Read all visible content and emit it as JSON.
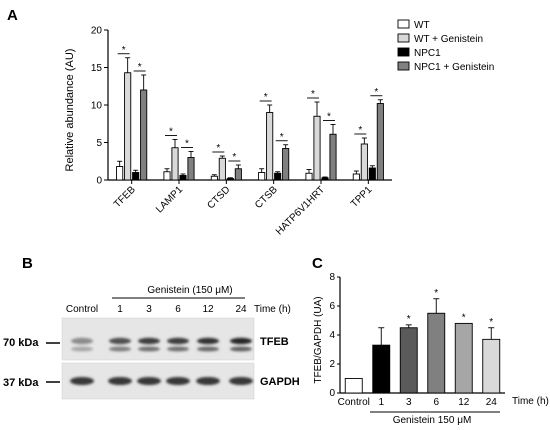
{
  "panels": {
    "a": "A",
    "b": "B",
    "c": "C"
  },
  "chart_data": [
    {
      "type": "bar",
      "panel": "A",
      "ylabel": "Relative abundance (AU)",
      "ylim": [
        0,
        20
      ],
      "yticks": [
        "0",
        "5",
        "10",
        "15",
        "20"
      ],
      "categories": [
        "TFEB",
        "LAMP1",
        "CTSD",
        "CTSB",
        "HATP6V1HRT",
        "TPP1"
      ],
      "series": [
        {
          "name": "WT",
          "color": "#ffffff",
          "values": [
            1.8,
            1.1,
            0.5,
            1.0,
            0.9,
            0.8
          ],
          "errors": [
            0.7,
            0.4,
            0.2,
            0.5,
            0.5,
            0.4
          ]
        },
        {
          "name": "WT + Genistein",
          "color": "#d9d9d9",
          "values": [
            14.3,
            4.3,
            2.9,
            9.0,
            8.5,
            4.8
          ],
          "errors": [
            2.0,
            1.1,
            0.3,
            1.0,
            1.9,
            0.8
          ]
        },
        {
          "name": "NPC1",
          "color": "#000000",
          "values": [
            1.0,
            0.6,
            0.2,
            0.9,
            0.3,
            1.6
          ],
          "errors": [
            0.3,
            0.2,
            0.1,
            0.2,
            0.1,
            0.3
          ]
        },
        {
          "name": "NPC1 + Genistein",
          "color": "#808080",
          "values": [
            12.0,
            3.0,
            1.5,
            4.2,
            6.1,
            10.2
          ],
          "errors": [
            2.0,
            0.8,
            0.5,
            0.5,
            1.3,
            0.5
          ]
        }
      ],
      "significance": "*",
      "legend_position": "top-right",
      "grid": false
    },
    {
      "type": "bar",
      "panel": "C",
      "ylabel": "TFEB/GAPDH (UA)",
      "ylim": [
        0,
        8
      ],
      "yticks": [
        "0",
        "2",
        "4",
        "6",
        "8"
      ],
      "categories": [
        "Control",
        "1",
        "3",
        "6",
        "12",
        "24"
      ],
      "values": [
        1.0,
        3.3,
        4.5,
        5.5,
        4.8,
        3.7
      ],
      "errors": [
        0.0,
        1.2,
        0.2,
        1.0,
        0.0,
        0.8
      ],
      "colors": [
        "#ffffff",
        "#000000",
        "#5a5a5a",
        "#808080",
        "#a6a6a6",
        "#d9d9d9"
      ],
      "significant": [
        false,
        false,
        true,
        true,
        true,
        true
      ],
      "significance": "*",
      "xlabel": "Genistein 150 μM",
      "time_label": "Time (h)",
      "grid": false
    }
  ],
  "blot": {
    "treatment_label": "Genistein (150 μM)",
    "control_label": "Control",
    "timepoints": [
      "1",
      "3",
      "6",
      "12",
      "24"
    ],
    "time_label": "Time (h)",
    "marker_70": "70 kDa",
    "marker_37": "37 kDa",
    "band_tfeb": "TFEB",
    "band_gapdh": "GAPDH"
  }
}
